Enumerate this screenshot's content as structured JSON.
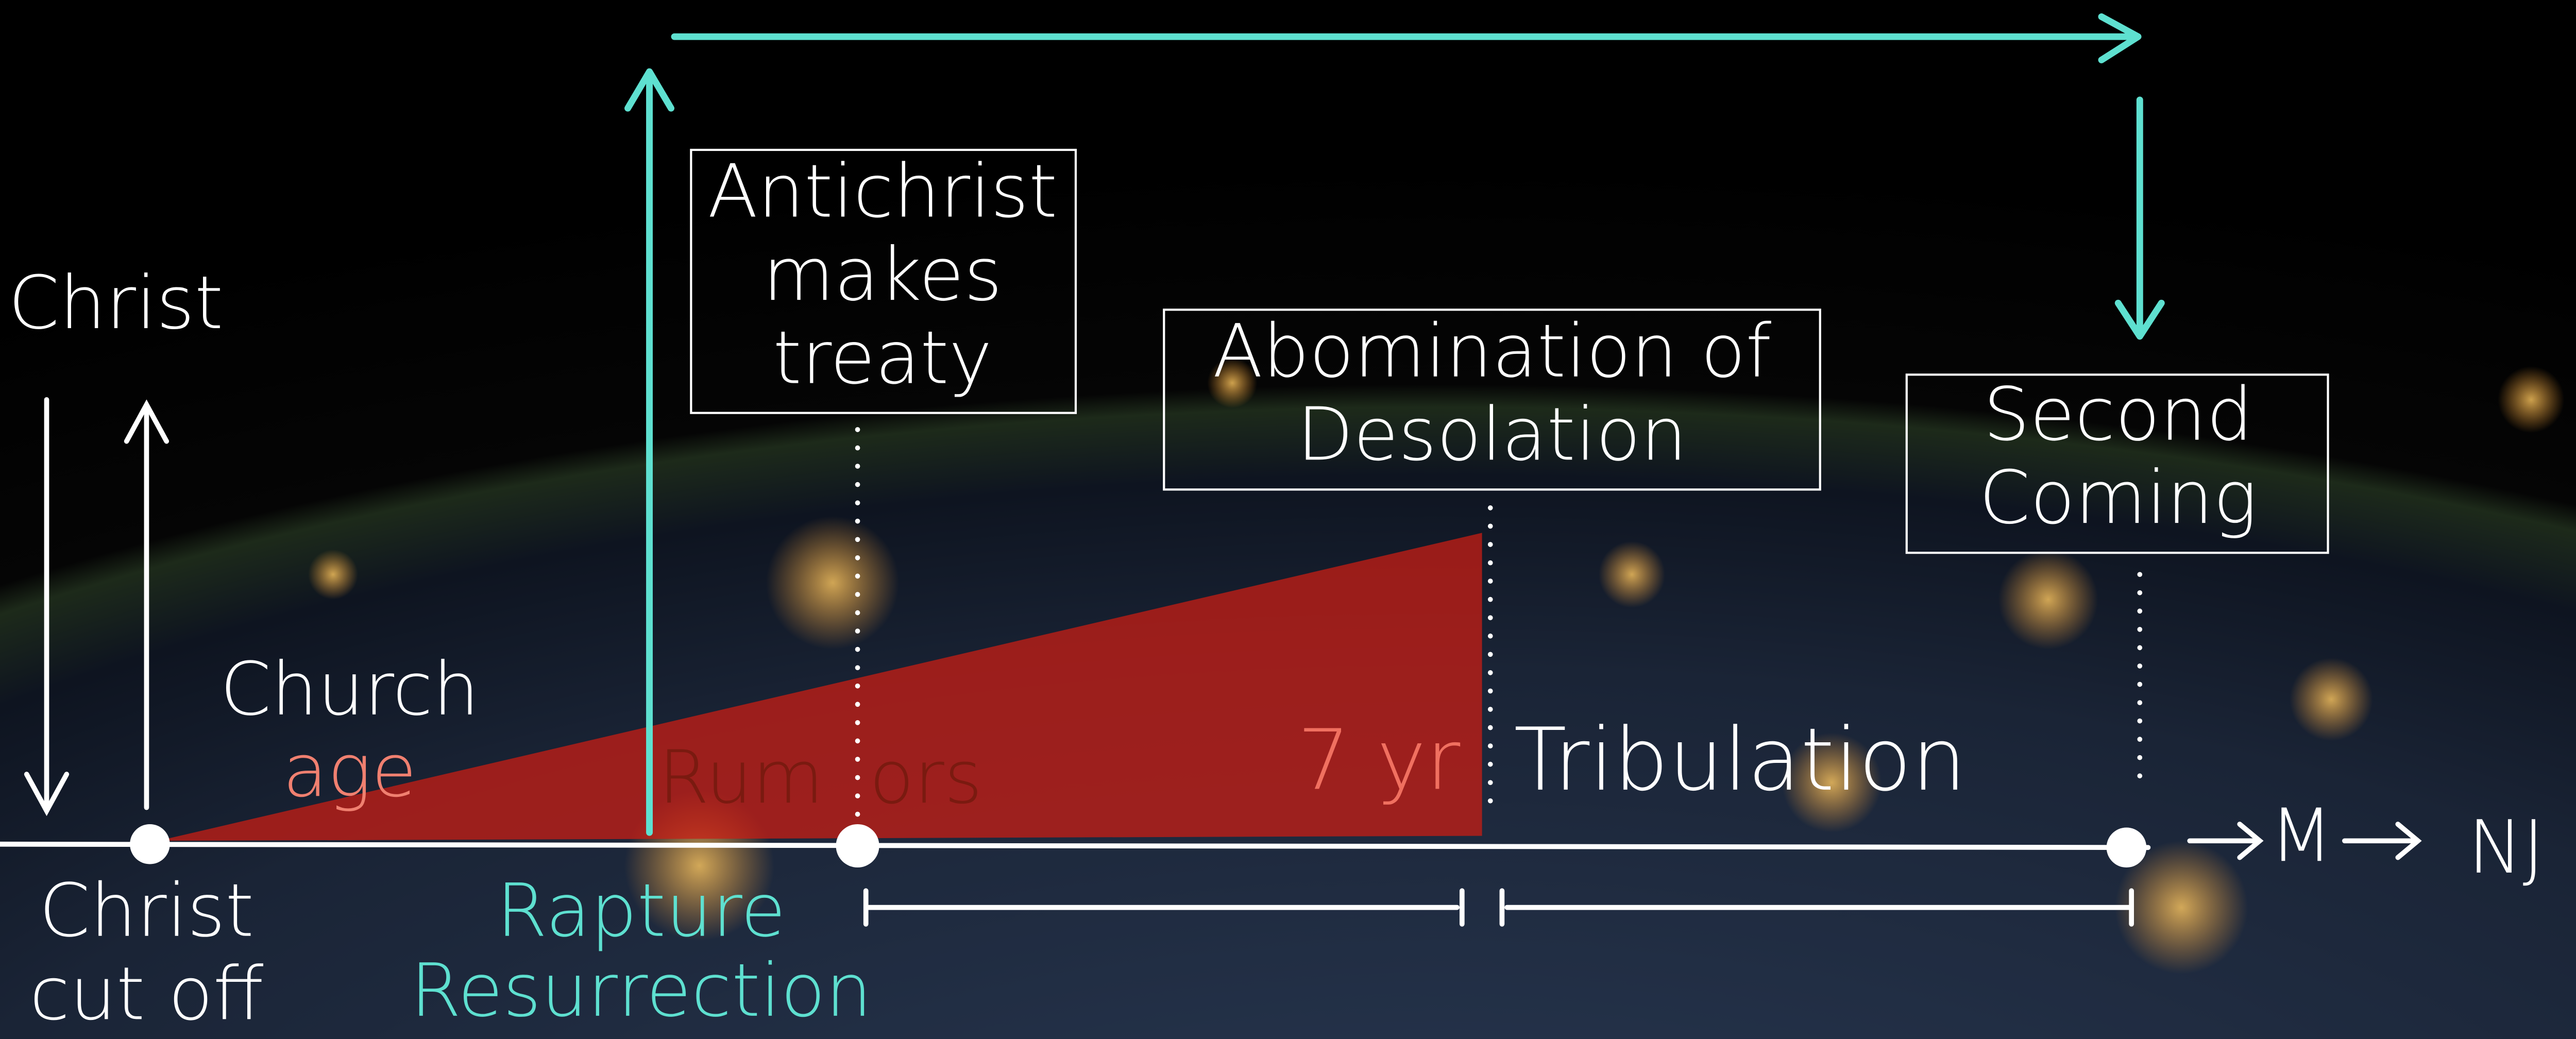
{
  "labels": {
    "christ": "Christ",
    "church_age": [
      "Church",
      "age"
    ],
    "christ_cut_off": [
      "Christ",
      "cut off"
    ],
    "rapture": [
      "Rapture",
      "Resurrection"
    ],
    "rumors": [
      "Rum",
      "ors"
    ],
    "seven_yr": "7 yr",
    "tribulation": "Tribulation",
    "m": "M",
    "nj": "NJ"
  },
  "boxes": [
    {
      "lines": [
        "Antichrist",
        "makes",
        "treaty"
      ]
    },
    {
      "lines": [
        "Abomination of",
        "Desolation"
      ]
    },
    {
      "lines": [
        "Second",
        "Coming"
      ]
    }
  ]
}
